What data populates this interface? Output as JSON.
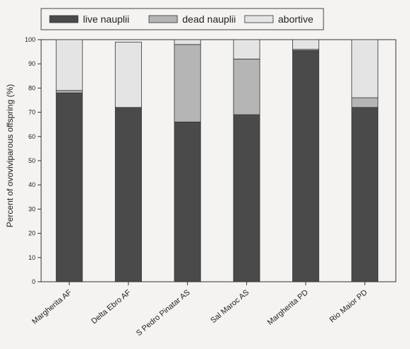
{
  "chart_data": {
    "type": "bar",
    "stacked": true,
    "categories": [
      "Margherita AF",
      "Delta Ebro AF",
      "S Pedro Pinatar AS",
      "Sal Maroc AS",
      "Margherita PD",
      "Rio Maior PD"
    ],
    "series": [
      {
        "name": "live nauplii",
        "color": "#4a4a4a",
        "values": [
          78,
          72,
          66,
          69,
          95.5,
          72
        ]
      },
      {
        "name": "dead nauplii",
        "color": "#b5b5b5",
        "values": [
          1,
          0,
          32,
          23,
          0.5,
          4
        ]
      },
      {
        "name": "abortive",
        "color": "#e4e4e4",
        "values": [
          21,
          27,
          2,
          8,
          4,
          24
        ]
      }
    ],
    "title": "",
    "xlabel": "",
    "ylabel": "Percent of ovoviviparous offspring (%)",
    "ylim": [
      0,
      100
    ],
    "yticks": [
      "0",
      "10",
      "20",
      "30",
      "40",
      "50",
      "60",
      "70",
      "80",
      "90",
      "100"
    ],
    "grid": false,
    "legend_position": "top"
  }
}
